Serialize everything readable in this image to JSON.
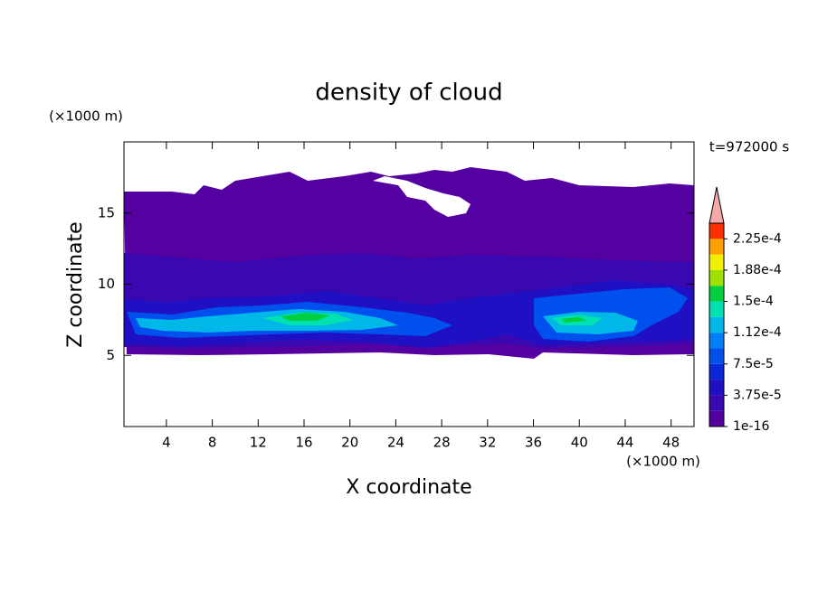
{
  "chart_data": {
    "type": "contour",
    "title": "density of cloud",
    "x_label": "X coordinate",
    "y_label": "Z coordinate",
    "x_unit": "(×1000 m)",
    "y_unit": "(×1000 m)",
    "time_label": "t=972000 s",
    "xlim": [
      0.3,
      50
    ],
    "ylim": [
      0,
      20
    ],
    "xticks": [
      4,
      8,
      12,
      16,
      20,
      24,
      28,
      32,
      36,
      40,
      44,
      48
    ],
    "yticks": [
      5,
      10,
      15
    ],
    "colorbar": {
      "clim": [
        1e-16,
        0.00024375
      ],
      "colors": [
        "#5500a0",
        "#3a08b0",
        "#2010c4",
        "#0a28d8",
        "#0050ee",
        "#0080f8",
        "#00b8e8",
        "#00e0b0",
        "#00d040",
        "#a0e000",
        "#f0f000",
        "#ffa000",
        "#ff3000"
      ],
      "extend_color": "#f4a8a8",
      "ticks": [
        {
          "value": 1e-16,
          "label": "1e-16"
        },
        {
          "value": 3.75e-05,
          "label": "3.75e-5"
        },
        {
          "value": 7.5e-05,
          "label": "7.5e-5"
        },
        {
          "value": 0.0001125,
          "label": "1.12e-4"
        },
        {
          "value": 0.00015,
          "label": "1.5e-4"
        },
        {
          "value": 0.0001875,
          "label": "1.88e-4"
        },
        {
          "value": 0.000225,
          "label": "2.25e-4"
        }
      ]
    }
  }
}
